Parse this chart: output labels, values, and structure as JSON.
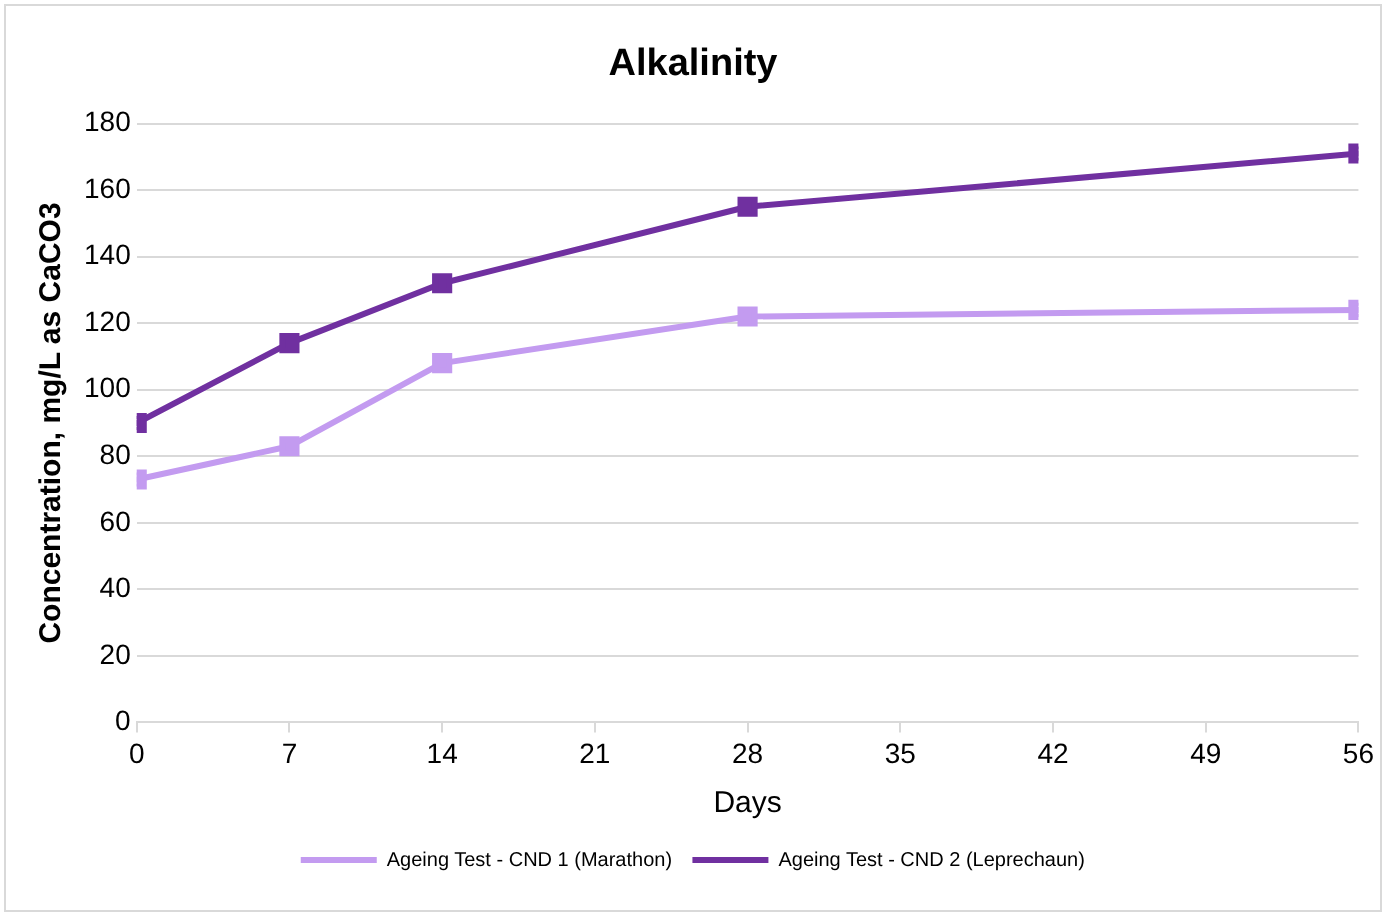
{
  "chart_data": {
    "type": "line",
    "title": "Alkalinity",
    "xlabel": "Days",
    "ylabel": "Concentration, mg/L as CaCO3",
    "x": [
      0,
      7,
      14,
      28,
      56
    ],
    "series": [
      {
        "name": "Ageing Test - CND 1 (Marathon)",
        "color": "#c39bf0",
        "values": [
          73,
          83,
          108,
          122,
          124
        ]
      },
      {
        "name": "Ageing Test - CND 2 (Leprechaun)",
        "color": "#7030a0",
        "values": [
          90,
          114,
          132,
          155,
          171
        ]
      }
    ],
    "xlim": [
      0,
      56
    ],
    "xticks": [
      0,
      7,
      14,
      21,
      28,
      35,
      42,
      49,
      56
    ],
    "ylim": [
      0,
      180
    ],
    "yticks": [
      0,
      20,
      40,
      60,
      80,
      100,
      120,
      140,
      160,
      180
    ],
    "grid": "y",
    "legend": "bottom",
    "marker": "square",
    "line_style": "solid"
  }
}
